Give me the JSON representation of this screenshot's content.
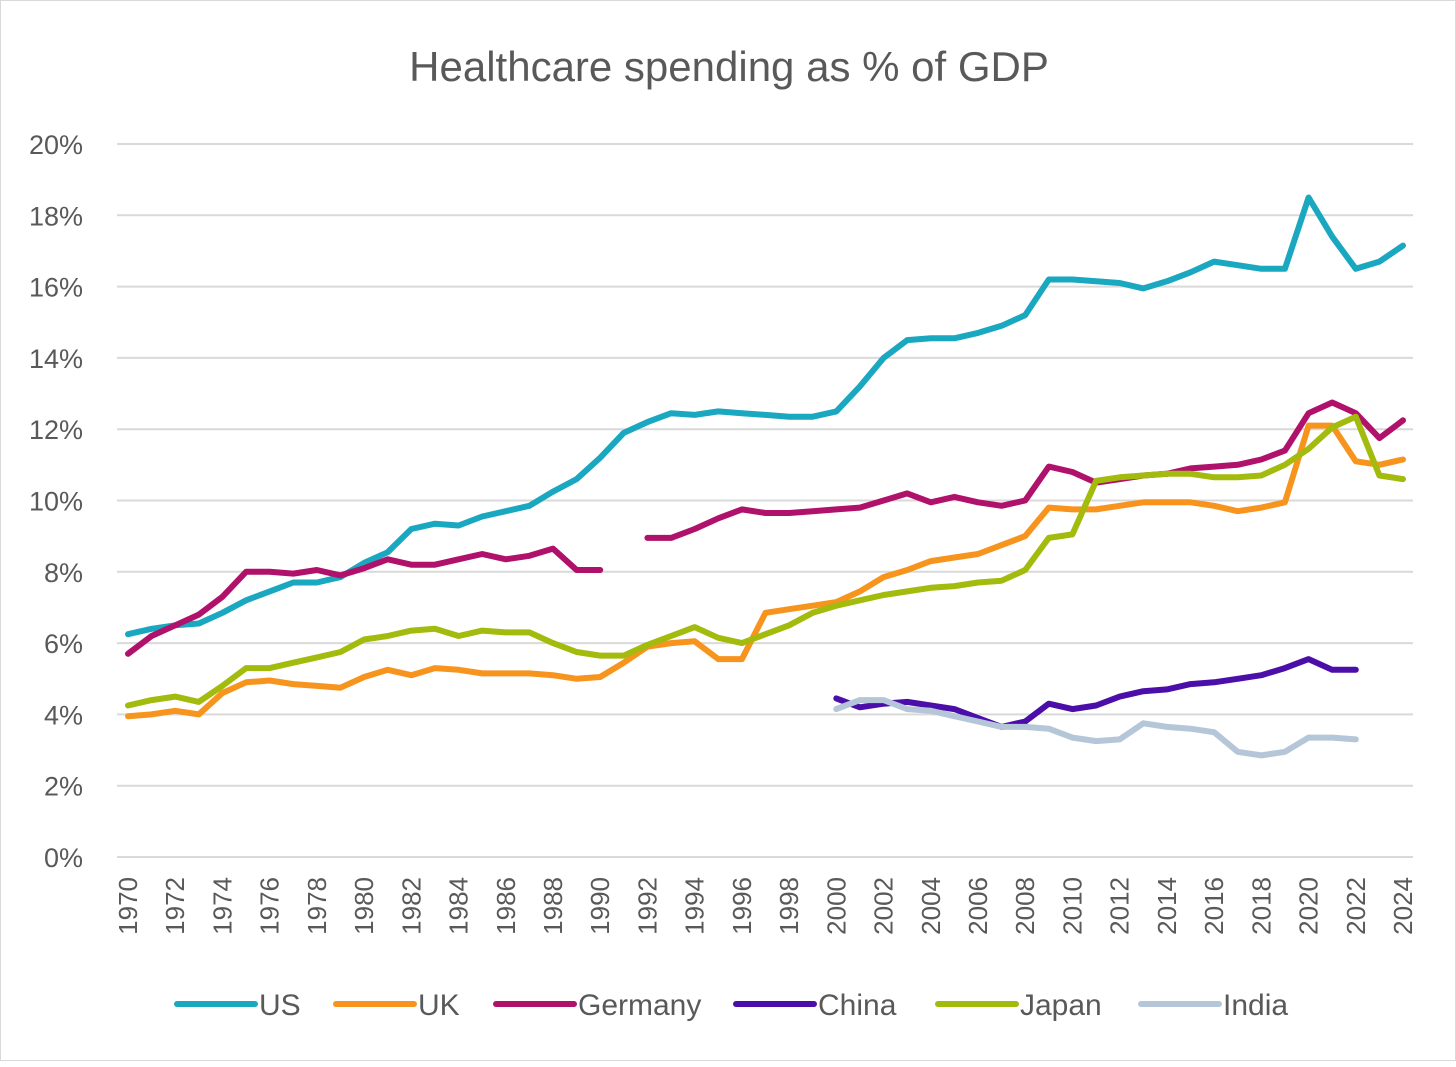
{
  "chart_data": {
    "type": "line",
    "title": "Healthcare spending as % of GDP",
    "xlabel": "",
    "ylabel": "",
    "ylim": [
      0,
      20
    ],
    "yticks": [
      "0%",
      "2%",
      "4%",
      "6%",
      "8%",
      "10%",
      "12%",
      "14%",
      "16%",
      "18%",
      "20%"
    ],
    "x_start": 1970,
    "x_end": 2024,
    "xtick_step": 2,
    "grid": true,
    "legend_position": "bottom",
    "series": [
      {
        "name": "US",
        "color": "#1aa7c0",
        "start": 1970,
        "values": [
          6.25,
          6.4,
          6.5,
          6.55,
          6.85,
          7.2,
          7.45,
          7.7,
          7.7,
          7.85,
          8.25,
          8.55,
          9.2,
          9.35,
          9.3,
          9.55,
          9.7,
          9.85,
          10.25,
          10.6,
          11.2,
          11.9,
          12.2,
          12.45,
          12.4,
          12.5,
          12.45,
          12.4,
          12.35,
          12.35,
          12.5,
          13.2,
          14.0,
          14.5,
          14.55,
          14.55,
          14.7,
          14.9,
          15.2,
          16.2,
          16.2,
          16.15,
          16.1,
          15.95,
          16.15,
          16.4,
          16.7,
          16.6,
          16.5,
          16.5,
          18.5,
          17.4,
          16.5,
          16.7,
          17.15
        ]
      },
      {
        "name": "UK",
        "color": "#f7941d",
        "start": 1970,
        "values": [
          3.95,
          4.0,
          4.1,
          4.0,
          4.6,
          4.9,
          4.95,
          4.85,
          4.8,
          4.75,
          5.05,
          5.25,
          5.1,
          5.3,
          5.25,
          5.15,
          5.15,
          5.15,
          5.1,
          5.0,
          5.05,
          5.45,
          5.9,
          6.0,
          6.05,
          5.55,
          5.55,
          6.85,
          6.95,
          7.05,
          7.15,
          7.45,
          7.85,
          8.05,
          8.3,
          8.4,
          8.5,
          8.75,
          9.0,
          9.8,
          9.75,
          9.75,
          9.85,
          9.95,
          9.95,
          9.95,
          9.85,
          9.7,
          9.8,
          9.95,
          12.1,
          12.1,
          11.1,
          11.0,
          11.15
        ]
      },
      {
        "name": "Germany",
        "color": "#b0116b",
        "start": 1970,
        "values": [
          5.7,
          6.2,
          6.5,
          6.8,
          7.3,
          8.0,
          8.0,
          7.95,
          8.05,
          7.9,
          8.1,
          8.35,
          8.2,
          8.2,
          8.35,
          8.5,
          8.35,
          8.45,
          8.65,
          8.05,
          8.05,
          null,
          8.95,
          8.95,
          9.2,
          9.5,
          9.75,
          9.65,
          9.65,
          9.7,
          9.75,
          9.8,
          10.0,
          10.2,
          9.95,
          10.1,
          9.95,
          9.85,
          10.0,
          10.95,
          10.8,
          10.5,
          10.6,
          10.7,
          10.75,
          10.9,
          10.95,
          11.0,
          11.15,
          11.4,
          12.45,
          12.75,
          12.45,
          11.75,
          12.25
        ]
      },
      {
        "name": "China",
        "color": "#4b0ea8",
        "start": 2000,
        "values": [
          4.45,
          4.2,
          4.3,
          4.35,
          4.25,
          4.15,
          3.9,
          3.65,
          3.8,
          4.3,
          4.15,
          4.25,
          4.5,
          4.65,
          4.7,
          4.85,
          4.9,
          5.0,
          5.1,
          5.3,
          5.55,
          5.25,
          5.25
        ]
      },
      {
        "name": "Japan",
        "color": "#a2bb0d",
        "start": 1970,
        "values": [
          4.25,
          4.4,
          4.5,
          4.35,
          4.8,
          5.3,
          5.3,
          5.45,
          5.6,
          5.75,
          6.1,
          6.2,
          6.35,
          6.4,
          6.2,
          6.35,
          6.3,
          6.3,
          6.0,
          5.75,
          5.65,
          5.65,
          5.95,
          6.2,
          6.45,
          6.15,
          6.0,
          6.25,
          6.5,
          6.85,
          7.05,
          7.2,
          7.35,
          7.45,
          7.55,
          7.6,
          7.7,
          7.75,
          8.05,
          8.95,
          9.05,
          10.55,
          10.65,
          10.7,
          10.75,
          10.75,
          10.65,
          10.65,
          10.7,
          11.0,
          11.45,
          12.05,
          12.35,
          10.7,
          10.6
        ]
      },
      {
        "name": "India",
        "color": "#b4c6d8",
        "start": 2000,
        "values": [
          4.15,
          4.4,
          4.4,
          4.15,
          4.1,
          3.95,
          3.8,
          3.65,
          3.65,
          3.6,
          3.35,
          3.25,
          3.3,
          3.75,
          3.65,
          3.6,
          3.5,
          2.95,
          2.85,
          2.95,
          3.35,
          3.35,
          3.3
        ]
      }
    ]
  }
}
